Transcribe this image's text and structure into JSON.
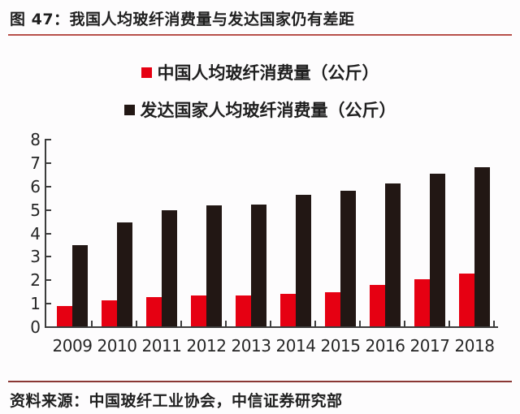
{
  "figure": {
    "title": "图 47：我国人均玻纤消费量与发达国家仍有差距",
    "source": "资料来源：中国玻纤工业协会，中信证券研究部"
  },
  "colors": {
    "china_series": "#e60012",
    "developed_series": "#221714",
    "title_rule": "#b8504b",
    "source_rule": "#8a3734",
    "axis": "#3d3d3d",
    "background": "#fdfcfd",
    "text": "#1f1f1f"
  },
  "chart_data": {
    "type": "bar",
    "title": "",
    "xlabel": "",
    "ylabel": "",
    "categories": [
      "2009",
      "2010",
      "2011",
      "2012",
      "2013",
      "2014",
      "2015",
      "2016",
      "2017",
      "2018"
    ],
    "series": [
      {
        "name": "中国人均玻纤消费量（公斤）",
        "color": "#e60012",
        "values": [
          0.85,
          1.1,
          1.25,
          1.3,
          1.3,
          1.4,
          1.45,
          1.75,
          2.0,
          2.25
        ]
      },
      {
        "name": "发达国家人均玻纤消费量（公斤）",
        "color": "#221714",
        "values": [
          3.45,
          4.45,
          4.95,
          5.15,
          5.2,
          5.6,
          5.8,
          6.1,
          6.5,
          6.8
        ]
      }
    ],
    "ylim": [
      0,
      8
    ],
    "yticks": [
      0,
      1,
      2,
      3,
      4,
      5,
      6,
      7,
      8
    ],
    "legend_position": "top",
    "grid": false
  }
}
